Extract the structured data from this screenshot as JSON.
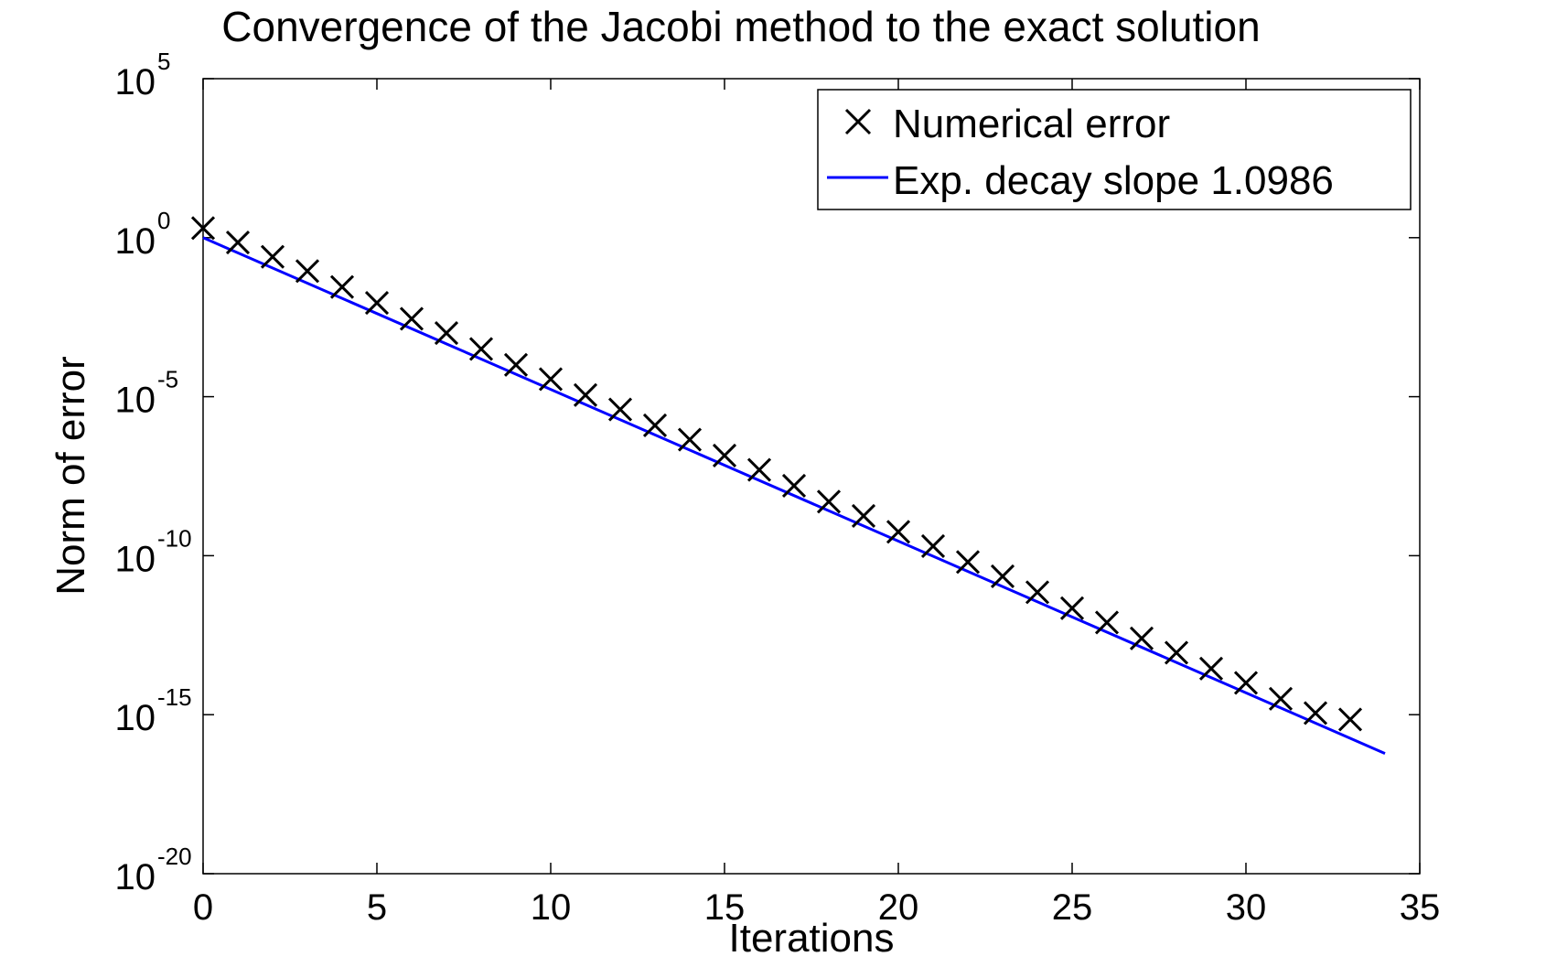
{
  "chart_data": {
    "type": "scatter",
    "title": "Convergence of the Jacobi method to the exact solution",
    "xlabel": "Iterations",
    "ylabel": "Norm of error",
    "xlim": [
      0,
      35
    ],
    "ylim_exponents": [
      -20,
      5
    ],
    "yscale": "log",
    "xticks": [
      "0",
      "5",
      "10",
      "15",
      "20",
      "25",
      "30",
      "35"
    ],
    "yticks": [
      {
        "base": "10",
        "exp": "5",
        "value_exp": 5
      },
      {
        "base": "10",
        "exp": "0",
        "value_exp": 0
      },
      {
        "base": "10",
        "exp": "-5",
        "value_exp": -5
      },
      {
        "base": "10",
        "exp": "-10",
        "value_exp": -10
      },
      {
        "base": "10",
        "exp": "-15",
        "value_exp": -15
      },
      {
        "base": "10",
        "exp": "-20",
        "value_exp": -20
      }
    ],
    "grid": false,
    "legend_position": "top-right",
    "series": [
      {
        "name": "Numerical error",
        "style": "markers-x",
        "color": "#000000",
        "x": [
          0,
          1,
          2,
          3,
          4,
          5,
          6,
          7,
          8,
          9,
          10,
          11,
          12,
          13,
          14,
          15,
          16,
          17,
          18,
          19,
          20,
          21,
          22,
          23,
          24,
          25,
          26,
          27,
          28,
          29,
          30,
          31,
          32,
          33
        ],
        "y_log10": [
          0.3,
          -0.15,
          -0.6,
          -1.05,
          -1.55,
          -2.05,
          -2.55,
          -3.0,
          -3.5,
          -4.0,
          -4.45,
          -4.95,
          -5.4,
          -5.9,
          -6.35,
          -6.85,
          -7.3,
          -7.8,
          -8.3,
          -8.75,
          -9.25,
          -9.7,
          -10.2,
          -10.65,
          -11.15,
          -11.65,
          -12.1,
          -12.6,
          -13.05,
          -13.55,
          -14.0,
          -14.5,
          -14.95,
          -15.15
        ]
      },
      {
        "name": "Exp. decay slope 1.0986",
        "style": "line",
        "color": "#0000ff",
        "x": [
          0,
          34
        ],
        "y_log10": [
          0,
          -16.22
        ]
      }
    ]
  }
}
